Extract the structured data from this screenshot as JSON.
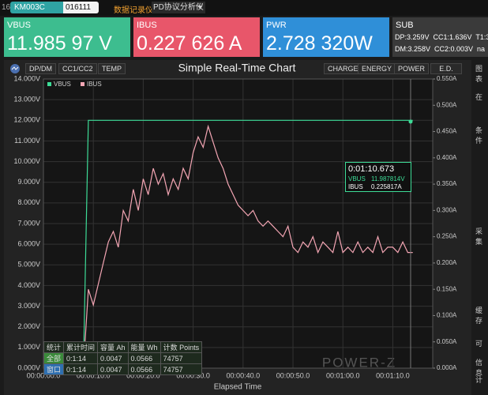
{
  "top_bar": {
    "port": "16",
    "device": "KM003C",
    "serial": "016111",
    "tabs": [
      "数据记录仪",
      "PD协议分析仪"
    ]
  },
  "tiles": [
    {
      "label": "VBUS",
      "value": "11.985 97 V"
    },
    {
      "label": "IBUS",
      "value": "0.227 626 A"
    },
    {
      "label": "PWR",
      "value": "2.728 320W"
    }
  ],
  "sub": {
    "label": "SUB",
    "lines": [
      "DP:3.259V  CC1:1.636V  T1:3",
      "DM:3.258V  CC2:0.003V  na"
    ]
  },
  "toolbar": {
    "left": [
      "DP/DM",
      "CC1/CC2",
      "TEMP"
    ],
    "right": [
      "CHARGE",
      "ENERGY",
      "POWER",
      "E.D."
    ]
  },
  "chart_data": {
    "type": "line",
    "title": "Simple Real-Time Chart",
    "x_label": "Elapsed Time",
    "x": [
      0,
      1,
      2,
      3,
      4,
      5,
      6,
      7,
      8,
      9,
      10,
      11,
      12,
      13,
      14,
      15,
      16,
      17,
      18,
      19,
      20,
      21,
      22,
      23,
      24,
      25,
      26,
      27,
      28,
      29,
      30,
      31,
      32,
      33,
      34,
      35,
      36,
      37,
      38,
      39,
      40,
      41,
      42,
      43,
      44,
      45,
      46,
      47,
      48,
      49,
      50,
      51,
      52,
      53,
      54,
      55,
      56,
      57,
      58,
      59,
      60,
      61,
      62,
      63,
      64,
      65,
      66,
      67,
      68,
      69,
      70,
      71,
      72,
      73,
      74
    ],
    "series": [
      {
        "name": "VBUS",
        "color": "#3ddc97",
        "values": [
          0,
          0,
          0,
          0,
          0,
          0,
          0,
          0,
          0,
          12,
          12,
          12,
          12,
          12,
          12,
          12,
          12,
          12,
          12,
          12,
          12,
          12,
          12,
          12,
          12,
          12,
          12,
          12,
          12,
          12,
          12,
          12,
          12,
          12,
          12,
          12,
          12,
          12,
          12,
          12,
          12,
          12,
          12,
          12,
          12,
          12,
          12,
          12,
          12,
          12,
          12,
          12,
          12,
          12,
          12,
          12,
          12,
          12,
          12,
          12,
          12,
          12,
          12,
          12,
          12,
          12,
          12,
          12,
          12,
          12,
          12,
          12,
          12,
          12,
          12
        ]
      },
      {
        "name": "IBUS",
        "color": "#f4a6b4",
        "axis": "y2",
        "values": [
          0,
          0,
          0,
          0,
          0,
          0,
          0,
          0,
          0,
          0.15,
          0.12,
          0.16,
          0.2,
          0.24,
          0.26,
          0.23,
          0.3,
          0.28,
          0.34,
          0.3,
          0.36,
          0.33,
          0.38,
          0.35,
          0.37,
          0.33,
          0.36,
          0.34,
          0.38,
          0.36,
          0.41,
          0.44,
          0.42,
          0.46,
          0.43,
          0.4,
          0.38,
          0.35,
          0.33,
          0.31,
          0.3,
          0.29,
          0.3,
          0.28,
          0.27,
          0.28,
          0.27,
          0.26,
          0.25,
          0.27,
          0.23,
          0.22,
          0.24,
          0.23,
          0.25,
          0.22,
          0.24,
          0.23,
          0.22,
          0.26,
          0.22,
          0.23,
          0.22,
          0.24,
          0.22,
          0.23,
          0.22,
          0.25,
          0.22,
          0.23,
          0.23,
          0.22,
          0.24,
          0.22,
          0.22
        ]
      }
    ],
    "xlim": [
      0,
      78
    ],
    "xticks": [
      {
        "value": 0,
        "label": "00:00:00.0"
      },
      {
        "value": 10,
        "label": "00:00:10.0"
      },
      {
        "value": 20,
        "label": "00:00:20.0"
      },
      {
        "value": 30,
        "label": "00:00:30.0"
      },
      {
        "value": 40,
        "label": "00:00:40.0"
      },
      {
        "value": 50,
        "label": "00:00:50.0"
      },
      {
        "value": 60,
        "label": "00:01:00.0"
      },
      {
        "value": 70,
        "label": "00:01:10.0"
      }
    ],
    "ylim": [
      0,
      14
    ],
    "yticks": [
      {
        "value": 0,
        "label": "0.000V"
      },
      {
        "value": 1,
        "label": "1.000V"
      },
      {
        "value": 2,
        "label": "2.000V"
      },
      {
        "value": 3,
        "label": "3.000V"
      },
      {
        "value": 4,
        "label": "4.000V"
      },
      {
        "value": 5,
        "label": "5.000V"
      },
      {
        "value": 6,
        "label": "6.000V"
      },
      {
        "value": 7,
        "label": "7.000V"
      },
      {
        "value": 8,
        "label": "8.000V"
      },
      {
        "value": 9,
        "label": "9.000V"
      },
      {
        "value": 10,
        "label": "10.000V"
      },
      {
        "value": 11,
        "label": "11.000V"
      },
      {
        "value": 12,
        "label": "12.000V"
      },
      {
        "value": 13,
        "label": "13.000V"
      },
      {
        "value": 14,
        "label": "14.000V"
      }
    ],
    "y2lim": [
      0,
      0.55
    ],
    "y2ticks": [
      {
        "value": 0,
        "label": "0.000A"
      },
      {
        "value": 0.05,
        "label": "0.050A"
      },
      {
        "value": 0.1,
        "label": "0.100A"
      },
      {
        "value": 0.15,
        "label": "0.150A"
      },
      {
        "value": 0.2,
        "label": "0.200A"
      },
      {
        "value": 0.25,
        "label": "0.250A"
      },
      {
        "value": 0.3,
        "label": "0.300A"
      },
      {
        "value": 0.35,
        "label": "0.350A"
      },
      {
        "value": 0.4,
        "label": "0.400A"
      },
      {
        "value": 0.45,
        "label": "0.450A"
      },
      {
        "value": 0.5,
        "label": "0.500A"
      },
      {
        "value": 0.55,
        "label": "0.550A"
      }
    ],
    "grid": true
  },
  "tooltip": {
    "time": "0:01:10.673",
    "rows": [
      [
        "VBUS",
        "11.987814V"
      ],
      [
        "IBUS",
        "0.225817A"
      ]
    ]
  },
  "stats": {
    "header": [
      "统计",
      "累计时间",
      "容量 Ah",
      "能量 Wh",
      "计数 Points"
    ],
    "rows": [
      [
        "全部",
        "0:1:14",
        "0.0047",
        "0.0566",
        "74757"
      ],
      [
        "窗口",
        "0:1:14",
        "0.0047",
        "0.0566",
        "74757"
      ]
    ]
  },
  "watermark": "POWER-Z",
  "sidebar": [
    "图表",
    "在",
    "条件",
    "采集",
    "缓存",
    "可",
    "信息",
    "计"
  ]
}
